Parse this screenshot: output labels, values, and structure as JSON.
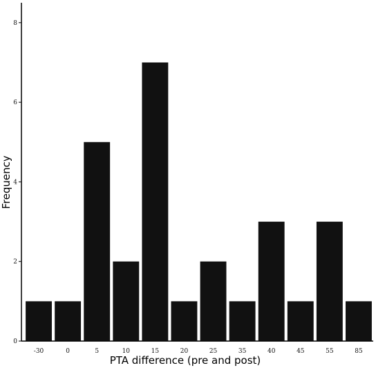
{
  "chart_data": {
    "type": "bar",
    "title": "",
    "xlabel": "PTA difference (pre and post)",
    "ylabel": "Frequency",
    "categories": [
      "-30",
      "0",
      "5",
      "10",
      "15",
      "20",
      "25",
      "35",
      "40",
      "45",
      "55",
      "85"
    ],
    "values": [
      1,
      1,
      5,
      2,
      7,
      1,
      2,
      1,
      3,
      1,
      3,
      1
    ],
    "ylim": [
      0,
      8.5
    ],
    "yticks": [
      "0",
      "2",
      "4",
      "6",
      "8"
    ],
    "grid": false,
    "bar_color": "#111111"
  }
}
